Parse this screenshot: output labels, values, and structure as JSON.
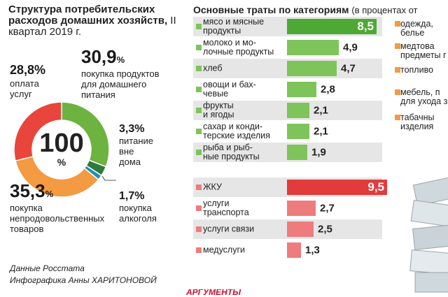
{
  "left": {
    "title": "Структура потребительских расходов домашних хозяйств,",
    "period": " II квартал 2019 г.",
    "donut": {
      "center_value": "100",
      "center_unit": "%"
    },
    "segments": [
      {
        "value": "30,9",
        "label_lines": [
          "покупка продуктов",
          "для домашнего",
          "питания"
        ],
        "color": "#6cb33f"
      },
      {
        "value": "3,3",
        "label_lines": [
          "питание",
          "вне",
          "дома"
        ],
        "color": "#2e7a3d"
      },
      {
        "value": "1,7",
        "label_lines": [
          "покупка",
          "алкоголя"
        ],
        "color": "#1f8fb4"
      },
      {
        "value": "35,3",
        "label_lines": [
          "покупка",
          "непродовольственных",
          "товаров"
        ],
        "color": "#f39a42"
      },
      {
        "value": "28,8",
        "label_lines": [
          "оплата",
          "услуг"
        ],
        "color": "#e8453c"
      }
    ],
    "percent_sign": "%",
    "credits": [
      "Данные Росстата",
      "Инфографика Анны ХАРИТОНОВОЙ"
    ]
  },
  "right": {
    "title": "Основные траты по категориям",
    "title_note": "(в процентах от",
    "side_items": [
      {
        "lines": [
          "одежда,",
          "белье"
        ],
        "color": "#f39a42"
      },
      {
        "lines": [
          "медтова",
          "предметы г"
        ],
        "color": "#f39a42"
      },
      {
        "lines": [
          "топливо"
        ],
        "color": "#f39a42"
      },
      {
        "lines": [
          "мебель, п",
          "для ухода за"
        ],
        "color": "#f39a42"
      },
      {
        "lines": [
          "табачны",
          "изделия"
        ],
        "color": "#f39a42"
      }
    ],
    "brand": "АРГУМЕНТЫ"
  },
  "chart_data": {
    "type": "bar",
    "orientation": "horizontal",
    "groups": [
      {
        "color": "#7ec45a",
        "highlight_color": "#4ea934",
        "categories": [
          [
            "мясо и мясные",
            "продукты"
          ],
          [
            "молоко и мо-",
            "лочные продукты"
          ],
          [
            "хлеб"
          ],
          [
            "овощи и бах-",
            "чевые"
          ],
          [
            "фрукты",
            "и ягоды"
          ],
          [
            "сахар и конди-",
            "терские изделия"
          ],
          [
            "рыба и рыб-",
            "ные продукты"
          ]
        ],
        "values": [
          8.5,
          4.9,
          4.7,
          2.8,
          2.1,
          2.1,
          1.9
        ],
        "labels": [
          "8,5",
          "4,9",
          "4,7",
          "2,8",
          "2,1",
          "2,1",
          "1,9"
        ]
      },
      {
        "color": "#ee7c7c",
        "highlight_color": "#e23b3b",
        "categories": [
          [
            "ЖКУ"
          ],
          [
            "услуги",
            "транспорта"
          ],
          [
            "услуги связи"
          ],
          [
            "медуслуги"
          ]
        ],
        "values": [
          9.5,
          2.7,
          2.5,
          1.3
        ],
        "labels": [
          "9,5",
          "2,7",
          "2,5",
          "1,3"
        ]
      }
    ],
    "xlim": [
      0,
      9.5
    ]
  }
}
